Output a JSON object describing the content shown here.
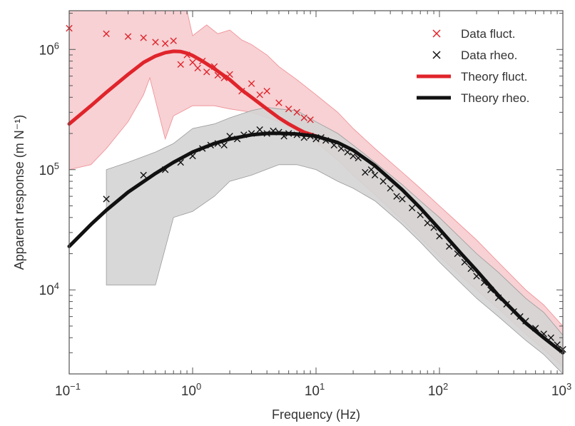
{
  "chart_data": {
    "type": "line",
    "title": "",
    "xlabel": "Frequency (Hz)",
    "ylabel": "Apparent response (m N⁻¹)",
    "x_scale": "log",
    "y_scale": "log",
    "xlim": [
      0.1,
      1000
    ],
    "ylim": [
      2000,
      2100000
    ],
    "x_ticks": [
      {
        "value": 0.1,
        "base": "10",
        "exp": "−1"
      },
      {
        "value": 1,
        "base": "10",
        "exp": "0"
      },
      {
        "value": 10,
        "base": "10",
        "exp": "1"
      },
      {
        "value": 100,
        "base": "10",
        "exp": "2"
      },
      {
        "value": 1000,
        "base": "10",
        "exp": "3"
      }
    ],
    "y_ticks": [
      {
        "value": 10000,
        "base": "10",
        "exp": "4"
      },
      {
        "value": 100000,
        "base": "10",
        "exp": "5"
      },
      {
        "value": 1000000,
        "base": "10",
        "exp": "6"
      }
    ],
    "grid": false,
    "legend_position": "top-right",
    "colors": {
      "fluct": "#e0242b",
      "rheo": "#111111",
      "fluct_band": "#f6c9cc",
      "rheo_band": "#d4d4d4",
      "axes": "#555555"
    },
    "legend": [
      {
        "label": "Data fluct.",
        "kind": "marker",
        "color": "#e0242b"
      },
      {
        "label": "Data rheo.",
        "kind": "marker",
        "color": "#111111"
      },
      {
        "label": "Theory fluct.",
        "kind": "line",
        "color": "#e0242b"
      },
      {
        "label": "Theory rheo.",
        "kind": "line",
        "color": "#111111"
      }
    ],
    "series": [
      {
        "name": "Data fluct.",
        "style": "marker",
        "color": "#e0242b",
        "points": [
          [
            0.1,
            1500000
          ],
          [
            0.2,
            1350000
          ],
          [
            0.3,
            1280000
          ],
          [
            0.4,
            1250000
          ],
          [
            0.5,
            1150000
          ],
          [
            0.6,
            1120000
          ],
          [
            0.7,
            1180000
          ],
          [
            0.8,
            750000
          ],
          [
            0.9,
            900000
          ],
          [
            1.0,
            780000
          ],
          [
            1.1,
            700000
          ],
          [
            1.2,
            800000
          ],
          [
            1.3,
            650000
          ],
          [
            1.5,
            720000
          ],
          [
            1.6,
            610000
          ],
          [
            1.8,
            580000
          ],
          [
            2.0,
            620000
          ],
          [
            2.5,
            450000
          ],
          [
            3.0,
            520000
          ],
          [
            3.5,
            420000
          ],
          [
            4.0,
            450000
          ],
          [
            5.0,
            360000
          ],
          [
            6.0,
            320000
          ],
          [
            7.0,
            300000
          ],
          [
            8.0,
            270000
          ],
          [
            9.0,
            260000
          ]
        ]
      },
      {
        "name": "Data rheo.",
        "style": "marker",
        "color": "#111111",
        "points": [
          [
            0.2,
            57000
          ],
          [
            0.4,
            90000
          ],
          [
            0.6,
            100000
          ],
          [
            0.8,
            115000
          ],
          [
            1.0,
            130000
          ],
          [
            1.2,
            150000
          ],
          [
            1.4,
            160000
          ],
          [
            1.6,
            165000
          ],
          [
            1.8,
            160000
          ],
          [
            2.0,
            190000
          ],
          [
            2.3,
            180000
          ],
          [
            2.6,
            195000
          ],
          [
            3.0,
            200000
          ],
          [
            3.5,
            215000
          ],
          [
            4.0,
            200000
          ],
          [
            4.5,
            210000
          ],
          [
            5.0,
            205000
          ],
          [
            5.5,
            190000
          ],
          [
            6.0,
            200000
          ],
          [
            7.0,
            195000
          ],
          [
            8.0,
            185000
          ],
          [
            9.0,
            190000
          ],
          [
            10.0,
            180000
          ],
          [
            11.0,
            185000
          ],
          [
            12.0,
            175000
          ],
          [
            14.0,
            160000
          ],
          [
            16.0,
            150000
          ],
          [
            18.0,
            140000
          ],
          [
            20.0,
            130000
          ],
          [
            22.0,
            125000
          ],
          [
            25.0,
            95000
          ],
          [
            28.0,
            100000
          ],
          [
            30.0,
            90000
          ],
          [
            35.0,
            80000
          ],
          [
            40.0,
            70000
          ],
          [
            45.0,
            60000
          ],
          [
            50.0,
            57000
          ],
          [
            60.0,
            48000
          ],
          [
            70.0,
            42000
          ],
          [
            80.0,
            36000
          ],
          [
            90.0,
            33000
          ],
          [
            100.0,
            28000
          ],
          [
            120.0,
            23000
          ],
          [
            140.0,
            20000
          ],
          [
            160.0,
            17000
          ],
          [
            180.0,
            15000
          ],
          [
            200.0,
            13000
          ],
          [
            230.0,
            11500
          ],
          [
            260.0,
            10000
          ],
          [
            300.0,
            8600
          ],
          [
            350.0,
            7600
          ],
          [
            400.0,
            6600
          ],
          [
            450.0,
            6000
          ],
          [
            500.0,
            5500
          ],
          [
            600.0,
            4800
          ],
          [
            700.0,
            4300
          ],
          [
            800.0,
            4000
          ],
          [
            900.0,
            3500
          ],
          [
            1000.0,
            3200
          ]
        ]
      },
      {
        "name": "Theory fluct.",
        "style": "line",
        "color": "#e0242b",
        "points": [
          [
            0.1,
            240000
          ],
          [
            0.15,
            340000
          ],
          [
            0.2,
            440000
          ],
          [
            0.3,
            620000
          ],
          [
            0.4,
            780000
          ],
          [
            0.5,
            880000
          ],
          [
            0.6,
            940000
          ],
          [
            0.7,
            965000
          ],
          [
            0.8,
            960000
          ],
          [
            0.9,
            930000
          ],
          [
            1.0,
            890000
          ],
          [
            1.2,
            800000
          ],
          [
            1.5,
            690000
          ],
          [
            2.0,
            560000
          ],
          [
            2.5,
            460000
          ],
          [
            3.0,
            400000
          ],
          [
            4.0,
            320000
          ],
          [
            5.0,
            270000
          ],
          [
            6.0,
            240000
          ],
          [
            7.0,
            220000
          ],
          [
            8.0,
            205000
          ],
          [
            10.0,
            190000
          ]
        ]
      },
      {
        "name": "Theory rheo.",
        "style": "line",
        "color": "#111111",
        "points": [
          [
            0.1,
            23000
          ],
          [
            0.15,
            35000
          ],
          [
            0.2,
            46000
          ],
          [
            0.3,
            65000
          ],
          [
            0.5,
            93000
          ],
          [
            0.7,
            115000
          ],
          [
            1.0,
            140000
          ],
          [
            1.5,
            165000
          ],
          [
            2.0,
            180000
          ],
          [
            3.0,
            195000
          ],
          [
            4.0,
            200000
          ],
          [
            5.0,
            201000
          ],
          [
            7.0,
            198000
          ],
          [
            10.0,
            190000
          ],
          [
            15.0,
            168000
          ],
          [
            20.0,
            145000
          ],
          [
            30.0,
            108000
          ],
          [
            50.0,
            68000
          ],
          [
            70.0,
            48000
          ],
          [
            100.0,
            32000
          ],
          [
            150.0,
            20000
          ],
          [
            200.0,
            14500
          ],
          [
            300.0,
            9000
          ],
          [
            500.0,
            5300
          ],
          [
            700.0,
            4000
          ],
          [
            1000.0,
            3000
          ]
        ]
      }
    ],
    "bands": [
      {
        "name": "fluct. band",
        "color": "#f6c9cc",
        "outline": "#f08a90",
        "upper": [
          [
            0.1,
            2100000
          ],
          [
            0.9,
            2100000
          ],
          [
            1.0,
            1300000
          ],
          [
            1.3,
            1600000
          ],
          [
            1.6,
            1350000
          ],
          [
            2.0,
            1450000
          ],
          [
            2.5,
            1200000
          ],
          [
            3.0,
            1100000
          ],
          [
            4.0,
            900000
          ],
          [
            5.0,
            720000
          ],
          [
            7.0,
            560000
          ],
          [
            10.0,
            420000
          ],
          [
            15.0,
            300000
          ],
          [
            20.0,
            220000
          ],
          [
            30.0,
            150000
          ],
          [
            50.0,
            95000
          ],
          [
            70.0,
            70000
          ],
          [
            100.0,
            50000
          ],
          [
            200.0,
            26000
          ],
          [
            300.0,
            17000
          ],
          [
            500.0,
            10000
          ],
          [
            700.0,
            7500
          ],
          [
            1000.0,
            5000
          ]
        ],
        "lower": [
          [
            1000.0,
            2300
          ],
          [
            700.0,
            3200
          ],
          [
            500.0,
            4300
          ],
          [
            300.0,
            7000
          ],
          [
            200.0,
            10000
          ],
          [
            150.0,
            13000
          ],
          [
            100.0,
            19000
          ],
          [
            70.0,
            27000
          ],
          [
            50.0,
            38000
          ],
          [
            30.0,
            62000
          ],
          [
            20.0,
            90000
          ],
          [
            15.0,
            120000
          ],
          [
            10.0,
            170000
          ],
          [
            7.0,
            210000
          ],
          [
            5.0,
            250000
          ],
          [
            3.0,
            300000
          ],
          [
            2.0,
            320000
          ],
          [
            1.5,
            340000
          ],
          [
            1.0,
            340000
          ],
          [
            0.7,
            280000
          ],
          [
            0.6,
            180000
          ],
          [
            0.45,
            580000
          ],
          [
            0.4,
            420000
          ],
          [
            0.3,
            250000
          ],
          [
            0.2,
            150000
          ],
          [
            0.15,
            110000
          ],
          [
            0.1,
            100000
          ]
        ]
      },
      {
        "name": "rheo. band",
        "color": "#d4d4d4",
        "outline": "#9a9a9a",
        "upper": [
          [
            0.2,
            100000
          ],
          [
            0.3,
            115000
          ],
          [
            0.5,
            140000
          ],
          [
            0.7,
            165000
          ],
          [
            1.0,
            220000
          ],
          [
            1.5,
            240000
          ],
          [
            2.0,
            270000
          ],
          [
            3.0,
            310000
          ],
          [
            4.0,
            330000
          ],
          [
            5.0,
            320000
          ],
          [
            7.0,
            310000
          ],
          [
            10.0,
            250000
          ],
          [
            15.0,
            200000
          ],
          [
            20.0,
            160000
          ],
          [
            30.0,
            115000
          ],
          [
            50.0,
            75000
          ],
          [
            70.0,
            55000
          ],
          [
            100.0,
            40000
          ],
          [
            200.0,
            20000
          ],
          [
            300.0,
            14000
          ],
          [
            500.0,
            8500
          ],
          [
            700.0,
            6500
          ],
          [
            1000.0,
            4200
          ]
        ],
        "lower": [
          [
            1000.0,
            2000
          ],
          [
            700.0,
            2900
          ],
          [
            500.0,
            3800
          ],
          [
            300.0,
            6000
          ],
          [
            200.0,
            8500
          ],
          [
            100.0,
            17000
          ],
          [
            70.0,
            25000
          ],
          [
            50.0,
            35000
          ],
          [
            30.0,
            55000
          ],
          [
            20.0,
            70000
          ],
          [
            15.0,
            80000
          ],
          [
            10.0,
            100000
          ],
          [
            7.0,
            110000
          ],
          [
            5.0,
            110000
          ],
          [
            3.0,
            90000
          ],
          [
            2.0,
            80000
          ],
          [
            1.5,
            60000
          ],
          [
            1.0,
            45000
          ],
          [
            0.7,
            40000
          ],
          [
            0.5,
            11000
          ],
          [
            0.3,
            11000
          ],
          [
            0.2,
            11000
          ]
        ]
      }
    ]
  }
}
